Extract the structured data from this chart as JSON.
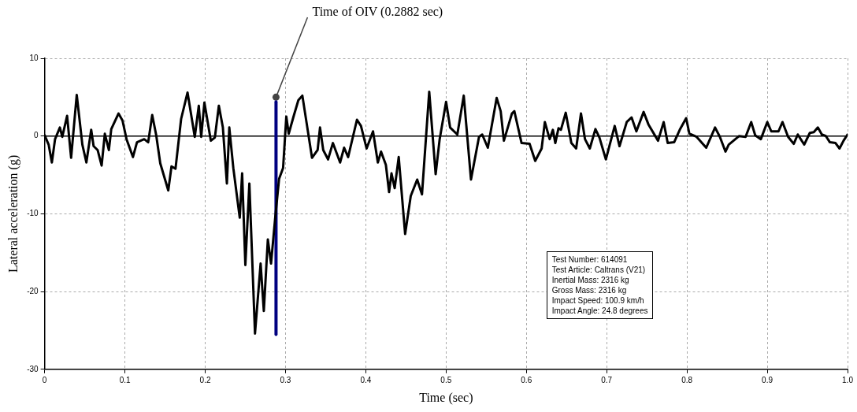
{
  "chart_data": {
    "type": "line",
    "xlabel": "Time (sec)",
    "ylabel": "Lateral acceleration (g)",
    "xlim": [
      0,
      1
    ],
    "xticks": [
      0,
      0.1,
      0.2,
      0.3,
      0.4,
      0.5,
      0.6,
      0.7,
      0.8,
      0.9,
      {
        "value": 1,
        "label": "1.0"
      }
    ],
    "ylim": [
      -30,
      10
    ],
    "yticks": [
      -30,
      -20,
      -10,
      0,
      10
    ],
    "grid": true,
    "legend": false,
    "marker": "none",
    "line_style": "solid",
    "series": [
      {
        "color": "#000000",
        "x": [
          0,
          0.005,
          0.009,
          0.013,
          0.019,
          0.022,
          0.028,
          0.033,
          0.04,
          0.047,
          0.052,
          0.058,
          0.061,
          0.066,
          0.071,
          0.075,
          0.08,
          0.083,
          0.092,
          0.097,
          0.102,
          0.11,
          0.115,
          0.124,
          0.129,
          0.134,
          0.139,
          0.144,
          0.154,
          0.158,
          0.163,
          0.17,
          0.178,
          0.187,
          0.192,
          0.195,
          0.199,
          0.207,
          0.212,
          0.217,
          0.222,
          0.227,
          0.23,
          0.235,
          0.243,
          0.246,
          0.25,
          0.255,
          0.262,
          0.269,
          0.273,
          0.278,
          0.282,
          0.287,
          0.292,
          0.297,
          0.301,
          0.304,
          0.31,
          0.316,
          0.321,
          0.333,
          0.34,
          0.343,
          0.347,
          0.353,
          0.359,
          0.368,
          0.373,
          0.378,
          0.389,
          0.394,
          0.401,
          0.409,
          0.415,
          0.419,
          0.425,
          0.429,
          0.432,
          0.436,
          0.441,
          0.449,
          0.456,
          0.464,
          0.47,
          0.479,
          0.487,
          0.492,
          0.5,
          0.505,
          0.514,
          0.522,
          0.531,
          0.541,
          0.545,
          0.552,
          0.563,
          0.568,
          0.572,
          0.582,
          0.585,
          0.594,
          0.604,
          0.611,
          0.619,
          0.623,
          0.629,
          0.633,
          0.636,
          0.64,
          0.643,
          0.649,
          0.656,
          0.662,
          0.668,
          0.673,
          0.679,
          0.686,
          0.691,
          0.699,
          0.71,
          0.716,
          0.725,
          0.731,
          0.737,
          0.746,
          0.752,
          0.764,
          0.771,
          0.776,
          0.784,
          0.791,
          0.799,
          0.803,
          0.812,
          0.824,
          0.835,
          0.841,
          0.848,
          0.852,
          0.865,
          0.873,
          0.88,
          0.885,
          0.892,
          0.9,
          0.905,
          0.914,
          0.919,
          0.926,
          0.933,
          0.938,
          0.946,
          0.953,
          0.958,
          0.963,
          0.968,
          0.973,
          0.978,
          0.985,
          0.99,
          0.995,
          1.0
        ],
        "values": [
          0.1,
          -1.1,
          -3.4,
          -0.4,
          1.1,
          -0.1,
          2.6,
          -2.8,
          5.3,
          -1.1,
          -3.4,
          0.8,
          -1.3,
          -1.8,
          -3.8,
          0.3,
          -1.8,
          0.9,
          2.9,
          2.0,
          -0.4,
          -2.7,
          -0.8,
          -0.4,
          -0.8,
          2.7,
          0.1,
          -3.5,
          -7.0,
          -3.9,
          -4.2,
          2.2,
          5.6,
          -0.1,
          3.9,
          -0.1,
          4.3,
          -0.6,
          -0.2,
          3.9,
          1.1,
          -6.1,
          1.1,
          -4.1,
          -10.5,
          -4.8,
          -16.6,
          -6.1,
          -25.4,
          -16.4,
          -22.5,
          -13.3,
          -16.4,
          -10.7,
          -5.5,
          -4.1,
          2.5,
          0.3,
          2.5,
          4.6,
          5.2,
          -2.8,
          -1.8,
          1.1,
          -1.8,
          -3.0,
          -0.9,
          -3.4,
          -1.5,
          -2.7,
          2.1,
          1.3,
          -1.6,
          0.6,
          -3.4,
          -2.0,
          -3.7,
          -7.2,
          -4.8,
          -6.7,
          -2.7,
          -12.6,
          -7.7,
          -5.6,
          -7.5,
          5.7,
          -4.9,
          -0.4,
          4.4,
          1.1,
          0.2,
          5.2,
          -5.6,
          -0.1,
          0.2,
          -1.5,
          4.9,
          3.2,
          -0.6,
          2.9,
          3.2,
          -0.9,
          -1.0,
          -3.2,
          -1.6,
          1.8,
          -0.4,
          0.8,
          -0.9,
          1.0,
          0.8,
          3.0,
          -0.9,
          -1.6,
          2.9,
          -0.4,
          -1.6,
          0.9,
          -0.2,
          -3.0,
          1.3,
          -1.3,
          1.8,
          2.4,
          0.6,
          3.1,
          1.5,
          -0.6,
          1.8,
          -0.9,
          -0.8,
          0.8,
          2.3,
          0.3,
          -0.1,
          -1.5,
          1.1,
          -0.1,
          -2.0,
          -1.1,
          0.0,
          -0.1,
          1.8,
          0.1,
          -0.4,
          1.8,
          0.6,
          0.6,
          1.8,
          -0.1,
          -1.0,
          0.2,
          -1.1,
          0.4,
          0.5,
          1.1,
          0.2,
          0.0,
          -0.8,
          -0.9,
          -1.6,
          -0.6,
          0.2
        ]
      },
      {
        "color": "#000080",
        "x": [
          0.2882,
          0.2882
        ],
        "values": [
          -25.5,
          4.4
        ]
      }
    ],
    "ref_lines": [
      {
        "axis": "y",
        "value": 0,
        "color": "#000000"
      }
    ],
    "annotations": [
      {
        "text": "Time of OIV (0.2882 sec)",
        "x": 0.2882,
        "y": 5
      },
      "Test Number: 614091",
      "Test Article: Caltrans (V21)",
      "Inertial Mass: 2316 kg",
      "Gross Mass: 2316 kg",
      "Impact Speed: 100.9 km/h",
      "Impact Angle: 24.8 degrees"
    ]
  }
}
